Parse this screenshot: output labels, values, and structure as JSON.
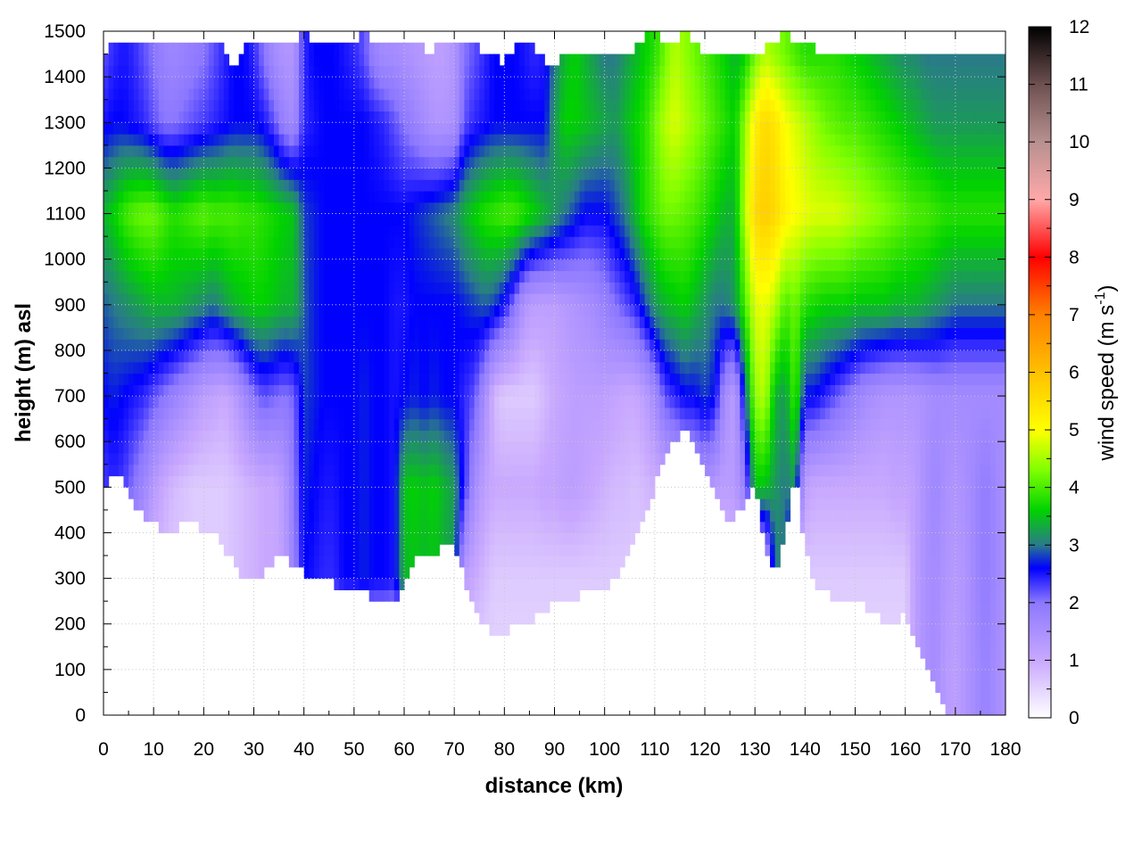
{
  "chart_data": {
    "type": "heatmap",
    "title": "",
    "xlabel": "distance (km)",
    "ylabel": "height (m) asl",
    "xlim": [
      0,
      180
    ],
    "ylim": [
      0,
      1500
    ],
    "x_ticks": [
      "0",
      "10",
      "20",
      "30",
      "40",
      "50",
      "60",
      "70",
      "80",
      "90",
      "100",
      "110",
      "120",
      "130",
      "140",
      "150",
      "160",
      "170",
      "180"
    ],
    "y_ticks": [
      "0",
      "100",
      "200",
      "300",
      "400",
      "500",
      "600",
      "700",
      "800",
      "900",
      "1000",
      "1100",
      "1200",
      "1300",
      "1400",
      "1500"
    ],
    "grid": true,
    "colorbar": {
      "label_main": "wind speed (m s",
      "label_sup": "-1",
      "label_close": ")",
      "range": [
        0,
        12
      ],
      "ticks": [
        "0",
        "1",
        "2",
        "3",
        "4",
        "5",
        "6",
        "7",
        "8",
        "9",
        "10",
        "11",
        "12"
      ],
      "stops": [
        {
          "value": 0,
          "color": "#ffffff"
        },
        {
          "value": 1,
          "color": "#c8a8ff"
        },
        {
          "value": 2,
          "color": "#8c78ff"
        },
        {
          "value": 2.6,
          "color": "#0000ff"
        },
        {
          "value": 3,
          "color": "#2a7a8a"
        },
        {
          "value": 3.6,
          "color": "#00d200"
        },
        {
          "value": 4.3,
          "color": "#80ff00"
        },
        {
          "value": 5,
          "color": "#ffff00"
        },
        {
          "value": 6,
          "color": "#ffc000"
        },
        {
          "value": 7,
          "color": "#ff8000"
        },
        {
          "value": 8,
          "color": "#ff0000"
        },
        {
          "value": 9,
          "color": "#ffa8a8"
        },
        {
          "value": 10,
          "color": "#b89090"
        },
        {
          "value": 11,
          "color": "#6e5050"
        },
        {
          "value": 12,
          "color": "#000000"
        }
      ]
    },
    "x_profile_km": [
      0,
      2,
      4,
      6,
      8,
      10,
      12,
      14,
      16,
      18,
      20,
      22,
      24,
      26,
      28,
      30,
      32,
      34,
      36,
      38,
      40,
      42,
      44,
      46,
      48,
      50,
      52,
      54,
      56,
      58,
      60,
      62,
      64,
      66,
      68,
      70,
      72,
      74,
      76,
      78,
      80,
      82,
      84,
      86,
      88,
      90,
      92,
      94,
      96,
      98,
      100,
      102,
      104,
      106,
      108,
      110,
      112,
      114,
      116,
      118,
      120,
      122,
      124,
      126,
      128,
      130,
      132,
      134,
      136,
      138,
      140,
      142,
      144,
      146,
      148,
      150,
      152,
      154,
      156,
      158,
      160,
      162,
      164,
      166,
      168,
      170,
      172,
      174,
      176,
      178,
      180
    ],
    "terrain_m": [
      490,
      530,
      520,
      470,
      440,
      420,
      410,
      410,
      420,
      420,
      410,
      400,
      370,
      330,
      290,
      290,
      310,
      340,
      350,
      330,
      310,
      300,
      300,
      290,
      280,
      270,
      270,
      260,
      250,
      240,
      280,
      340,
      360,
      360,
      370,
      370,
      300,
      240,
      200,
      180,
      170,
      200,
      190,
      210,
      230,
      250,
      260,
      260,
      270,
      270,
      280,
      300,
      340,
      390,
      430,
      500,
      560,
      600,
      620,
      600,
      530,
      480,
      440,
      430,
      470,
      520,
      370,
      320,
      380,
      530,
      370,
      290,
      270,
      260,
      260,
      250,
      240,
      220,
      200,
      190,
      230,
      150,
      110,
      60,
      10,
      10,
      10,
      10,
      10,
      10,
      10
    ],
    "top_m": [
      1440,
      1480,
      1470,
      1460,
      1470,
      1470,
      1480,
      1480,
      1470,
      1480,
      1480,
      1470,
      1460,
      1420,
      1470,
      1480,
      1480,
      1480,
      1470,
      1480,
      1490,
      1480,
      1480,
      1470,
      1480,
      1480,
      1490,
      1480,
      1470,
      1460,
      1470,
      1480,
      1460,
      1460,
      1490,
      1470,
      1480,
      1470,
      1450,
      1450,
      1430,
      1460,
      1470,
      1470,
      1430,
      1430,
      1440,
      1450,
      1440,
      1440,
      1440,
      1440,
      1450,
      1460,
      1490,
      1490,
      1480,
      1480,
      1490,
      1480,
      1450,
      1460,
      1440,
      1460,
      1460,
      1430,
      1460,
      1480,
      1490,
      1480,
      1470,
      1460,
      1460,
      1460,
      1460,
      1450,
      1450,
      1460,
      1460,
      1460,
      1460,
      1450,
      1450,
      1440,
      1440,
      1440,
      1440,
      1440,
      1440,
      1440,
      1440
    ],
    "speed_profiles_m_s": [
      {
        "height_m": 100,
        "values": [
          0.5,
          0.5,
          0.5,
          0.5,
          0.5,
          0.5,
          0.5,
          0.5,
          0.5,
          0.5,
          0.5,
          0.5,
          0.5,
          0.5,
          0.5,
          0.5,
          0.5,
          0.5,
          0.5,
          0.5,
          0.5,
          0.5,
          0.5,
          0.5,
          0.5,
          0.5,
          0.5,
          0.5,
          0.5,
          0.5,
          0.5,
          0.5,
          0.5,
          0.5,
          0.5,
          0.5,
          0.5,
          0.5,
          0.5,
          0.5,
          0.5,
          0.5,
          0.5,
          0.5,
          0.5,
          0.5,
          0.5,
          0.5,
          0.5,
          0.5,
          0.5,
          0.5,
          0.5,
          0.5,
          0.5,
          0.5,
          0.5,
          0.5,
          0.5,
          0.5,
          0.5,
          0.5,
          0.5,
          0.5,
          0.5,
          0.5,
          0.5,
          0.5,
          0.5,
          0.5,
          0.5,
          0.5,
          0.5,
          0.5,
          0.5,
          0.5,
          0.5,
          0.5,
          0.5,
          0.5,
          0.5,
          1.2,
          1.5,
          1.6,
          1.3,
          1.2,
          1.4,
          1.6,
          1.8,
          1.6,
          1.4
        ]
      },
      {
        "height_m": 300,
        "values": [
          1.8,
          1.8,
          1.5,
          1.2,
          1.0,
          0.8,
          0.7,
          0.6,
          0.6,
          0.6,
          0.6,
          0.6,
          0.6,
          0.7,
          0.8,
          0.9,
          1.0,
          1.0,
          1.2,
          1.8,
          2.6,
          2.5,
          2.4,
          2.4,
          2.6,
          2.6,
          2.7,
          2.6,
          2.6,
          2.5,
          3.4,
          3.5,
          3.4,
          3.5,
          3.3,
          3.2,
          1.2,
          1.0,
          0.8,
          0.6,
          0.6,
          0.6,
          0.6,
          0.6,
          0.6,
          0.6,
          0.6,
          0.6,
          0.6,
          0.6,
          0.6,
          0.6,
          0.6,
          0.6,
          0.6,
          0.6,
          0.6,
          0.6,
          0.6,
          0.6,
          0.6,
          0.6,
          0.6,
          0.6,
          0.6,
          0.6,
          0.6,
          3.0,
          3.0,
          0.6,
          0.6,
          0.6,
          0.6,
          0.6,
          0.6,
          0.6,
          0.6,
          0.6,
          0.6,
          0.6,
          0.6,
          1.2,
          1.5,
          1.6,
          1.4,
          1.3,
          1.4,
          1.7,
          1.9,
          1.7,
          1.5
        ]
      },
      {
        "height_m": 500,
        "values": [
          2.3,
          2.4,
          2.3,
          2.0,
          1.7,
          1.3,
          1.0,
          0.8,
          0.7,
          0.6,
          0.6,
          0.6,
          0.6,
          0.7,
          0.8,
          0.9,
          1.0,
          1.0,
          1.3,
          1.9,
          2.7,
          2.6,
          2.5,
          2.5,
          2.6,
          2.6,
          2.7,
          2.6,
          2.6,
          2.5,
          3.5,
          3.6,
          3.5,
          3.6,
          3.4,
          3.2,
          2.4,
          1.6,
          1.2,
          1.0,
          1.0,
          1.0,
          1.0,
          1.0,
          1.1,
          1.1,
          1.2,
          1.2,
          1.1,
          1.0,
          0.9,
          0.8,
          0.8,
          0.7,
          0.8,
          0.9,
          1.0,
          1.1,
          1.2,
          1.3,
          1.5,
          1.3,
          1.2,
          1.3,
          1.8,
          3.5,
          3.5,
          3.2,
          3.0,
          3.2,
          1.2,
          1.0,
          1.0,
          1.0,
          1.0,
          1.0,
          1.0,
          1.0,
          1.0,
          1.1,
          1.1,
          1.2,
          1.5,
          1.7,
          1.5,
          1.4,
          1.5,
          1.7,
          1.9,
          1.7,
          1.5
        ]
      },
      {
        "height_m": 700,
        "values": [
          2.6,
          2.7,
          2.6,
          2.5,
          2.4,
          2.2,
          2.0,
          1.8,
          1.6,
          1.4,
          1.2,
          1.1,
          1.0,
          1.2,
          1.6,
          2.0,
          2.2,
          2.1,
          2.0,
          2.1,
          2.8,
          2.7,
          2.6,
          2.6,
          2.6,
          2.6,
          2.7,
          2.6,
          2.6,
          2.5,
          2.6,
          2.7,
          2.6,
          2.7,
          2.6,
          2.6,
          2.4,
          2.2,
          1.6,
          0.8,
          0.6,
          0.6,
          0.6,
          0.6,
          0.8,
          1.0,
          1.1,
          1.2,
          1.2,
          1.2,
          1.2,
          1.1,
          1.0,
          1.0,
          1.2,
          1.6,
          2.2,
          2.4,
          2.6,
          2.6,
          2.8,
          2.6,
          1.6,
          1.2,
          2.8,
          4.4,
          4.6,
          3.4,
          3.2,
          4.0,
          2.6,
          2.6,
          2.4,
          2.2,
          2.0,
          1.8,
          1.6,
          1.5,
          1.4,
          1.4,
          1.4,
          1.4,
          1.5,
          1.6,
          1.6,
          1.6,
          1.6,
          1.6,
          1.6,
          1.6,
          1.6
        ]
      },
      {
        "height_m": 900,
        "values": [
          2.9,
          3.0,
          3.1,
          3.2,
          3.3,
          3.4,
          3.4,
          3.4,
          3.3,
          3.2,
          3.1,
          3.0,
          3.2,
          3.4,
          3.5,
          3.6,
          3.6,
          3.5,
          3.4,
          3.4,
          2.9,
          2.7,
          2.6,
          2.6,
          2.6,
          2.6,
          2.6,
          2.6,
          2.6,
          2.5,
          2.5,
          2.6,
          2.6,
          2.6,
          2.6,
          2.6,
          2.7,
          2.8,
          2.9,
          2.8,
          2.5,
          2.0,
          1.4,
          1.2,
          1.2,
          1.2,
          1.3,
          1.4,
          1.5,
          1.6,
          1.8,
          2.0,
          2.2,
          2.4,
          2.8,
          3.2,
          3.4,
          3.5,
          3.6,
          3.4,
          3.2,
          3.0,
          3.0,
          3.2,
          4.0,
          4.8,
          4.9,
          4.6,
          4.0,
          4.2,
          3.8,
          3.7,
          3.6,
          3.6,
          3.6,
          3.5,
          3.5,
          3.5,
          3.5,
          3.4,
          3.4,
          3.4,
          3.3,
          3.2,
          3.1,
          3.0,
          3.0,
          3.0,
          3.0,
          3.0,
          3.0
        ]
      },
      {
        "height_m": 1100,
        "values": [
          3.4,
          3.6,
          3.9,
          4.1,
          4.2,
          4.2,
          4.0,
          3.8,
          3.9,
          4.0,
          4.1,
          4.0,
          4.0,
          4.0,
          3.9,
          3.9,
          3.8,
          3.7,
          3.6,
          3.5,
          2.8,
          2.7,
          2.6,
          2.6,
          2.6,
          2.6,
          2.6,
          2.6,
          2.6,
          2.6,
          2.6,
          2.7,
          2.8,
          2.9,
          3.0,
          3.1,
          3.4,
          3.6,
          3.8,
          3.9,
          4.0,
          4.0,
          3.8,
          3.6,
          3.4,
          3.2,
          3.0,
          2.8,
          2.6,
          2.6,
          2.6,
          2.8,
          3.0,
          3.4,
          3.8,
          4.0,
          4.2,
          4.2,
          4.1,
          4.0,
          3.8,
          3.6,
          3.4,
          3.4,
          4.6,
          5.6,
          5.8,
          5.6,
          5.2,
          5.0,
          4.9,
          4.8,
          4.8,
          4.8,
          4.7,
          4.6,
          4.5,
          4.4,
          4.3,
          4.2,
          4.1,
          4.0,
          4.0,
          3.9,
          3.8,
          3.8,
          3.8,
          3.8,
          3.8,
          3.8,
          3.8
        ]
      },
      {
        "height_m": 1300,
        "values": [
          2.5,
          2.6,
          2.6,
          2.5,
          2.4,
          2.2,
          2.0,
          2.0,
          2.1,
          2.2,
          2.3,
          2.4,
          2.5,
          2.6,
          2.6,
          2.6,
          2.5,
          2.2,
          1.8,
          1.6,
          2.4,
          2.5,
          2.6,
          2.6,
          2.6,
          2.6,
          2.6,
          2.5,
          2.4,
          2.2,
          2.0,
          1.8,
          1.6,
          1.4,
          1.4,
          1.5,
          2.2,
          2.4,
          2.5,
          2.6,
          2.6,
          2.6,
          2.6,
          2.6,
          2.6,
          3.2,
          3.6,
          3.6,
          3.5,
          3.4,
          3.3,
          3.2,
          3.4,
          3.6,
          3.8,
          4.2,
          4.6,
          4.8,
          4.6,
          4.4,
          4.2,
          4.0,
          3.8,
          3.6,
          4.4,
          5.2,
          5.6,
          5.4,
          5.0,
          4.8,
          4.6,
          4.4,
          4.2,
          4.1,
          4.0,
          4.0,
          3.9,
          3.8,
          3.7,
          3.6,
          3.5,
          3.4,
          3.3,
          3.2,
          3.2,
          3.2,
          3.2,
          3.2,
          3.2,
          3.2,
          3.2
        ]
      },
      {
        "height_m": 1450,
        "values": [
          2.2,
          2.4,
          2.5,
          2.4,
          2.2,
          2.0,
          1.8,
          1.7,
          1.8,
          1.9,
          2.0,
          2.2,
          2.4,
          2.6,
          2.6,
          2.4,
          2.0,
          1.6,
          1.4,
          1.4,
          2.4,
          2.6,
          2.6,
          2.6,
          2.5,
          2.4,
          2.2,
          1.8,
          1.6,
          1.6,
          1.5,
          1.4,
          1.3,
          1.2,
          1.2,
          1.4,
          2.0,
          2.2,
          2.4,
          2.6,
          2.6,
          2.6,
          2.5,
          2.4,
          2.5,
          3.0,
          3.4,
          3.6,
          3.4,
          3.2,
          3.0,
          3.0,
          3.2,
          3.4,
          3.6,
          3.8,
          4.2,
          4.6,
          4.4,
          4.2,
          4.0,
          3.8,
          3.6,
          3.4,
          3.6,
          4.2,
          4.6,
          4.4,
          4.2,
          4.0,
          3.8,
          3.8,
          3.8,
          3.8,
          3.7,
          3.6,
          3.5,
          3.4,
          3.3,
          3.2,
          3.1,
          3.1,
          3.0,
          3.0,
          3.0,
          3.0,
          3.0,
          3.0,
          3.0,
          3.0,
          3.0
        ]
      }
    ]
  }
}
